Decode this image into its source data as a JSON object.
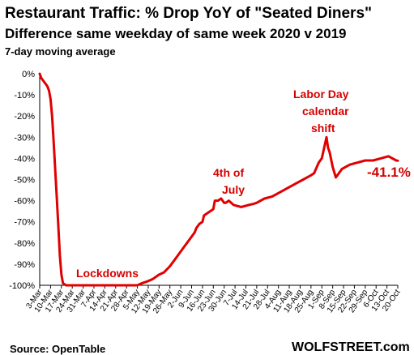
{
  "chart_data": {
    "type": "line",
    "title": "Restaurant Traffic: % Drop YoY of \"Seated Diners\"",
    "subtitle": "Difference same weekday of same week 2020 v 2019",
    "note": "7-day moving average",
    "source": "Source: OpenTable",
    "brand": "WOLFSTREET.com",
    "ylim": [
      -100,
      0
    ],
    "yticks": [
      "0%",
      "-10%",
      "-20%",
      "-30%",
      "-40%",
      "-50%",
      "-60%",
      "-70%",
      "-80%",
      "-90%",
      "-100%"
    ],
    "xticks": [
      "3-Mar",
      "10-Mar",
      "17-Mar",
      "24-Mar",
      "31-Mar",
      "7-Apr",
      "14-Apr",
      "21-Apr",
      "28-Apr",
      "5-May",
      "12-May",
      "19-May",
      "26-May",
      "2-Jun",
      "9-Jun",
      "16-Jun",
      "23-Jun",
      "30-Jun",
      "7-Jul",
      "14-Jul",
      "21-Jul",
      "28-Jul",
      "4-Aug",
      "11-Aug",
      "18-Aug",
      "25-Aug",
      "1-Sep",
      "8-Sep",
      "15-Sep",
      "22-Sep",
      "29-Sep",
      "6-Oct",
      "13-Oct",
      "20-Oct"
    ],
    "line_color": "#e00000",
    "grid": false,
    "series": [
      {
        "x": [
          0,
          1,
          2,
          3,
          4,
          5,
          6,
          7,
          8,
          9,
          10,
          11,
          12,
          13,
          14,
          15,
          16,
          17,
          18,
          19,
          20,
          21,
          24,
          28,
          35,
          42,
          49,
          56,
          63,
          66,
          70,
          73,
          77,
          80,
          84,
          87,
          90,
          93,
          96,
          98,
          100,
          101,
          102,
          103,
          105,
          106,
          108,
          110,
          112,
          113,
          115,
          117,
          119,
          120,
          122,
          125,
          130,
          135,
          138,
          140,
          145,
          150,
          155,
          160,
          165,
          170,
          175,
          177,
          180,
          182,
          185,
          186,
          187,
          189,
          191,
          193,
          195,
          200,
          205,
          210,
          215,
          220,
          225,
          230,
          231
        ],
        "y": [
          0,
          -2,
          -3,
          -4,
          -5,
          -6,
          -8,
          -12,
          -20,
          -32,
          -45,
          -58,
          -72,
          -86,
          -95,
          -99,
          -99.5,
          -100,
          -100,
          -100,
          -100,
          -100,
          -100,
          -100,
          -100,
          -100,
          -100,
          -100,
          -100,
          -99,
          -98,
          -97,
          -95,
          -94,
          -91,
          -88,
          -85,
          -82,
          -79,
          -77,
          -75,
          -73,
          -72,
          -71,
          -70,
          -67,
          -66,
          -65,
          -64,
          -60,
          -60,
          -59,
          -61,
          -61,
          -60,
          -62,
          -63,
          -62,
          -61.5,
          -61,
          -59,
          -58,
          -56,
          -54,
          -52,
          -50,
          -48,
          -47,
          -42,
          -40,
          -30,
          -35,
          -37,
          -44,
          -49,
          -47,
          -45,
          -43,
          -42,
          -41,
          -41,
          -40,
          -39,
          -41,
          -41.1
        ]
      }
    ],
    "annotations": {
      "lockdowns": "Lockdowns",
      "july4_line1": "4th of",
      "july4_line2": "July",
      "labor_line1": "Labor Day",
      "labor_line2": "calendar",
      "labor_line3": "shift",
      "last_value": "-41.1%"
    }
  }
}
